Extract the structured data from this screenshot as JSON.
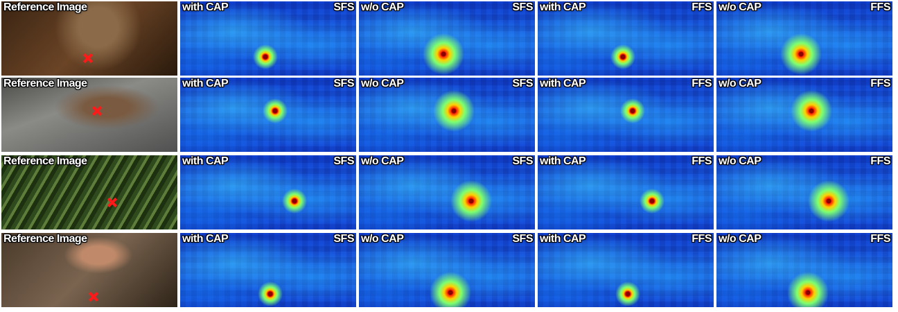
{
  "rows": [
    {
      "cells": [
        {
          "label": "Reference Image"
        },
        {
          "label": "with CAP",
          "method": "SFS"
        },
        {
          "label": "w/o CAP",
          "method": "SFS"
        },
        {
          "label": "with CAP",
          "method": "FFS"
        },
        {
          "label": "w/o CAP",
          "method": "FFS"
        }
      ]
    },
    {
      "cells": [
        {
          "label": "Reference Image"
        },
        {
          "label": "with CAP",
          "method": "SFS"
        },
        {
          "label": "w/o CAP",
          "method": "SFS"
        },
        {
          "label": "with CAP",
          "method": "FFS"
        },
        {
          "label": "w/o CAP",
          "method": "FFS"
        }
      ]
    },
    {
      "cells": [
        {
          "label": "Reference Image"
        },
        {
          "label": "with CAP",
          "method": "SFS"
        },
        {
          "label": "w/o CAP",
          "method": "SFS"
        },
        {
          "label": "with CAP",
          "method": "FFS"
        },
        {
          "label": "w/o CAP",
          "method": "FFS"
        }
      ]
    },
    {
      "cells": [
        {
          "label": "Reference Image"
        },
        {
          "label": "with CAP",
          "method": "SFS"
        },
        {
          "label": "w/o CAP",
          "method": "SFS"
        },
        {
          "label": "with CAP",
          "method": "FFS"
        },
        {
          "label": "w/o CAP",
          "method": "FFS"
        }
      ]
    }
  ]
}
